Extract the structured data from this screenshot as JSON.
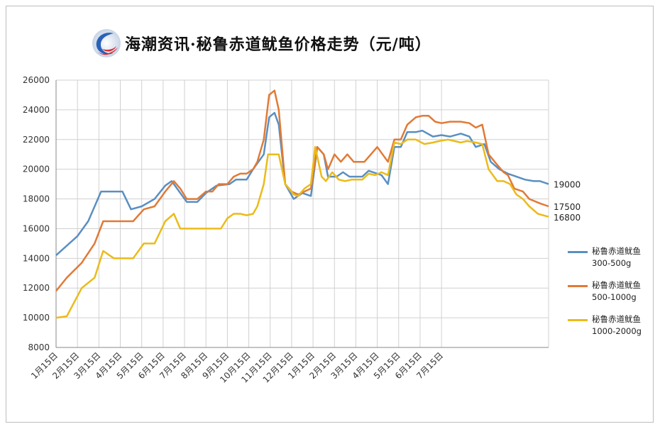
{
  "header": {
    "title": "海潮资讯·秘鲁赤道鱿鱼价格走势（元/吨）"
  },
  "colors": {
    "s1": "#5a8fc2",
    "s2": "#e07a36",
    "s3": "#ebbb1a",
    "grid": "#d0d0d0",
    "axis": "#888888"
  },
  "chart_data": {
    "type": "line",
    "title": "海潮资讯·秘鲁赤道鱿鱼价格走势（元/吨）",
    "ylim": [
      8000,
      26000
    ],
    "yticks": [
      8000,
      10000,
      12000,
      14000,
      16000,
      18000,
      20000,
      22000,
      24000,
      26000
    ],
    "xtick_labels": [
      "1月15日",
      "2月15日",
      "3月15日",
      "4月15日",
      "5月15日",
      "6月15日",
      "7月15日",
      "8月15日",
      "9月15日",
      "10月15日",
      "11月15日",
      "12月15日",
      "1月15日",
      "2月15日",
      "3月15日",
      "4月15日",
      "5月15日",
      "6月15日",
      "7月15日"
    ],
    "grid": true,
    "legend_position": "right",
    "series": [
      {
        "name": "秘鲁赤道鱿鱼300-500g",
        "name_lines": [
          "秘鲁赤道鱿鱼",
          "300-500g"
        ],
        "end_label": "19000",
        "points": [
          [
            0,
            14200
          ],
          [
            1,
            15500
          ],
          [
            1.5,
            16500
          ],
          [
            2.1,
            18500
          ],
          [
            3.1,
            18500
          ],
          [
            3.5,
            17300
          ],
          [
            4,
            17500
          ],
          [
            4.6,
            18000
          ],
          [
            5.1,
            18900
          ],
          [
            5.4,
            19200
          ],
          [
            6.1,
            17800
          ],
          [
            6.6,
            17800
          ],
          [
            7,
            18400
          ],
          [
            7.5,
            18900
          ],
          [
            8.1,
            19000
          ],
          [
            8.4,
            19300
          ],
          [
            8.9,
            19300
          ],
          [
            9.2,
            20000
          ],
          [
            9.7,
            21000
          ],
          [
            9.95,
            23500
          ],
          [
            10.2,
            23800
          ],
          [
            10.4,
            23000
          ],
          [
            10.7,
            19000
          ],
          [
            11.1,
            18000
          ],
          [
            11.5,
            18400
          ],
          [
            11.9,
            18200
          ],
          [
            12.2,
            21500
          ],
          [
            12.5,
            21000
          ],
          [
            12.7,
            19500
          ],
          [
            13.1,
            19500
          ],
          [
            13.4,
            19800
          ],
          [
            13.7,
            19500
          ],
          [
            14.3,
            19500
          ],
          [
            14.6,
            19900
          ],
          [
            15.2,
            19600
          ],
          [
            15.5,
            19000
          ],
          [
            15.8,
            21500
          ],
          [
            16.1,
            21500
          ],
          [
            16.4,
            22500
          ],
          [
            16.8,
            22500
          ],
          [
            17.1,
            22600
          ],
          [
            17.6,
            22200
          ],
          [
            18,
            22300
          ],
          [
            18.4,
            22200
          ],
          [
            18.9,
            22400
          ],
          [
            19.3,
            22200
          ],
          [
            19.6,
            21500
          ],
          [
            20,
            21700
          ],
          [
            20.3,
            20500
          ],
          [
            20.7,
            20000
          ],
          [
            21.1,
            19700
          ],
          [
            21.5,
            19500
          ],
          [
            21.9,
            19300
          ],
          [
            22.3,
            19200
          ],
          [
            22.6,
            19200
          ],
          [
            23,
            19000
          ]
        ]
      },
      {
        "name": "秘鲁赤道鱿鱼500-1000g",
        "name_lines": [
          "秘鲁赤道鱿鱼",
          "500-1000g"
        ],
        "end_label": "17500",
        "points": [
          [
            0,
            11800
          ],
          [
            0.5,
            12700
          ],
          [
            1.2,
            13700
          ],
          [
            1.8,
            15000
          ],
          [
            2.2,
            16500
          ],
          [
            3.2,
            16500
          ],
          [
            3.6,
            16500
          ],
          [
            4.1,
            17300
          ],
          [
            4.6,
            17500
          ],
          [
            5.1,
            18500
          ],
          [
            5.5,
            19200
          ],
          [
            5.8,
            18700
          ],
          [
            6.1,
            18000
          ],
          [
            6.6,
            18000
          ],
          [
            7,
            18500
          ],
          [
            7.3,
            18500
          ],
          [
            7.6,
            19000
          ],
          [
            8,
            19000
          ],
          [
            8.3,
            19500
          ],
          [
            8.6,
            19700
          ],
          [
            8.9,
            19700
          ],
          [
            9.2,
            20000
          ],
          [
            9.4,
            20500
          ],
          [
            9.7,
            22000
          ],
          [
            9.95,
            25000
          ],
          [
            10.2,
            25300
          ],
          [
            10.4,
            24000
          ],
          [
            10.7,
            19000
          ],
          [
            11,
            18500
          ],
          [
            11.3,
            18300
          ],
          [
            11.6,
            18500
          ],
          [
            11.9,
            18700
          ],
          [
            12.2,
            21500
          ],
          [
            12.5,
            21000
          ],
          [
            12.7,
            20000
          ],
          [
            13,
            21000
          ],
          [
            13.3,
            20500
          ],
          [
            13.6,
            21000
          ],
          [
            13.9,
            20500
          ],
          [
            14.4,
            20500
          ],
          [
            14.7,
            21000
          ],
          [
            15,
            21500
          ],
          [
            15.5,
            20500
          ],
          [
            15.8,
            22000
          ],
          [
            16.1,
            22000
          ],
          [
            16.4,
            23000
          ],
          [
            16.8,
            23500
          ],
          [
            17.1,
            23600
          ],
          [
            17.4,
            23600
          ],
          [
            17.7,
            23200
          ],
          [
            18,
            23100
          ],
          [
            18.4,
            23200
          ],
          [
            18.9,
            23200
          ],
          [
            19.3,
            23100
          ],
          [
            19.6,
            22800
          ],
          [
            19.9,
            23000
          ],
          [
            20.2,
            21000
          ],
          [
            20.6,
            20300
          ],
          [
            20.9,
            19800
          ],
          [
            21.1,
            19600
          ],
          [
            21.4,
            18700
          ],
          [
            21.8,
            18500
          ],
          [
            22.1,
            18000
          ],
          [
            22.6,
            17700
          ],
          [
            23,
            17500
          ]
        ]
      },
      {
        "name": "秘鲁赤道鱿鱼1000-2000g",
        "name_lines": [
          "秘鲁赤道鱿鱼",
          "1000-2000g"
        ],
        "end_label": "16800",
        "points": [
          [
            0,
            10000
          ],
          [
            0.5,
            10100
          ],
          [
            1.2,
            12000
          ],
          [
            1.8,
            12700
          ],
          [
            2.2,
            14500
          ],
          [
            2.7,
            14000
          ],
          [
            3.2,
            14000
          ],
          [
            3.6,
            14000
          ],
          [
            4.1,
            15000
          ],
          [
            4.6,
            15000
          ],
          [
            5.1,
            16500
          ],
          [
            5.5,
            17000
          ],
          [
            5.8,
            16000
          ],
          [
            6.2,
            16000
          ],
          [
            6.6,
            16000
          ],
          [
            7,
            16000
          ],
          [
            7.4,
            16000
          ],
          [
            7.7,
            16000
          ],
          [
            8,
            16700
          ],
          [
            8.3,
            17000
          ],
          [
            8.6,
            17000
          ],
          [
            8.9,
            16900
          ],
          [
            9.2,
            17000
          ],
          [
            9.4,
            17500
          ],
          [
            9.7,
            19000
          ],
          [
            9.9,
            21000
          ],
          [
            10.4,
            21000
          ],
          [
            10.7,
            19000
          ],
          [
            11.1,
            18300
          ],
          [
            11.3,
            18200
          ],
          [
            11.6,
            18700
          ],
          [
            11.9,
            19000
          ],
          [
            12.1,
            21500
          ],
          [
            12.4,
            19500
          ],
          [
            12.6,
            19200
          ],
          [
            12.9,
            19800
          ],
          [
            13.2,
            19300
          ],
          [
            13.5,
            19200
          ],
          [
            13.8,
            19300
          ],
          [
            14.3,
            19300
          ],
          [
            14.6,
            19700
          ],
          [
            14.9,
            19600
          ],
          [
            15.2,
            19800
          ],
          [
            15.5,
            19600
          ],
          [
            15.8,
            21800
          ],
          [
            16.1,
            21700
          ],
          [
            16.4,
            22000
          ],
          [
            16.8,
            22000
          ],
          [
            17.2,
            21700
          ],
          [
            17.6,
            21800
          ],
          [
            17.9,
            21900
          ],
          [
            18.3,
            22000
          ],
          [
            18.6,
            21900
          ],
          [
            18.9,
            21800
          ],
          [
            19.2,
            21900
          ],
          [
            19.6,
            21800
          ],
          [
            19.9,
            21700
          ],
          [
            20.2,
            20000
          ],
          [
            20.6,
            19200
          ],
          [
            20.9,
            19200
          ],
          [
            21.2,
            19000
          ],
          [
            21.5,
            18300
          ],
          [
            21.8,
            18000
          ],
          [
            22.1,
            17500
          ],
          [
            22.5,
            17000
          ],
          [
            23,
            16800
          ]
        ]
      }
    ]
  }
}
